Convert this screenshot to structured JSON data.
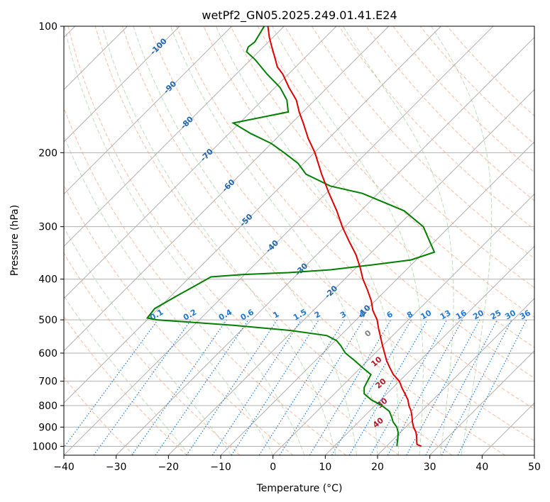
{
  "chart_data": {
    "type": "skew-t",
    "title": "wetPf2_GN05.2025.249.01.41.E24",
    "xlabel": "Temperature (°C)",
    "ylabel": "Pressure (hPa)",
    "xlim": [
      -40,
      50
    ],
    "ylim_hpa": [
      1050,
      100
    ],
    "x_ticks": [
      -40,
      -30,
      -20,
      -10,
      0,
      10,
      20,
      30,
      40,
      50
    ],
    "y_ticks": [
      100,
      200,
      300,
      400,
      500,
      600,
      700,
      800,
      900,
      1000
    ],
    "temperature_profile": [
      {
        "p": 1000,
        "t": 26.7
      },
      {
        "p": 990,
        "t": 25.5
      },
      {
        "p": 975,
        "t": 24.9
      },
      {
        "p": 950,
        "t": 24.0
      },
      {
        "p": 925,
        "t": 22.9
      },
      {
        "p": 900,
        "t": 21.5
      },
      {
        "p": 875,
        "t": 20.3
      },
      {
        "p": 850,
        "t": 19.2
      },
      {
        "p": 825,
        "t": 18.0
      },
      {
        "p": 800,
        "t": 16.5
      },
      {
        "p": 775,
        "t": 15.2
      },
      {
        "p": 750,
        "t": 13.5
      },
      {
        "p": 725,
        "t": 11.7
      },
      {
        "p": 700,
        "t": 10.0
      },
      {
        "p": 675,
        "t": 7.6
      },
      {
        "p": 650,
        "t": 5.6
      },
      {
        "p": 625,
        "t": 3.6
      },
      {
        "p": 600,
        "t": 1.8
      },
      {
        "p": 575,
        "t": -0.1
      },
      {
        "p": 550,
        "t": -2.0
      },
      {
        "p": 525,
        "t": -4.0
      },
      {
        "p": 500,
        "t": -6.0
      },
      {
        "p": 475,
        "t": -8.6
      },
      {
        "p": 450,
        "t": -10.8
      },
      {
        "p": 425,
        "t": -13.5
      },
      {
        "p": 400,
        "t": -16.5
      },
      {
        "p": 375,
        "t": -19.3
      },
      {
        "p": 350,
        "t": -22.5
      },
      {
        "p": 325,
        "t": -26.4
      },
      {
        "p": 300,
        "t": -30.5
      },
      {
        "p": 275,
        "t": -34.6
      },
      {
        "p": 250,
        "t": -39.4
      },
      {
        "p": 225,
        "t": -44.5
      },
      {
        "p": 200,
        "t": -49.9
      },
      {
        "p": 185,
        "t": -53.9
      },
      {
        "p": 170,
        "t": -57.8
      },
      {
        "p": 160,
        "t": -60.7
      },
      {
        "p": 150,
        "t": -63.5
      },
      {
        "p": 140,
        "t": -67.3
      },
      {
        "p": 130,
        "t": -71.1
      },
      {
        "p": 125,
        "t": -73.5
      },
      {
        "p": 120,
        "t": -75.3
      },
      {
        "p": 112,
        "t": -78.4
      },
      {
        "p": 106,
        "t": -80.8
      },
      {
        "p": 100,
        "t": -83.1
      }
    ],
    "dewpoint_profile": [
      {
        "p": 1000,
        "t": 22.0
      },
      {
        "p": 975,
        "t": 21.2
      },
      {
        "p": 950,
        "t": 20.4
      },
      {
        "p": 925,
        "t": 19.5
      },
      {
        "p": 900,
        "t": 18.3
      },
      {
        "p": 875,
        "t": 16.6
      },
      {
        "p": 850,
        "t": 15.3
      },
      {
        "p": 825,
        "t": 13.8
      },
      {
        "p": 800,
        "t": 11.3
      },
      {
        "p": 775,
        "t": 8.2
      },
      {
        "p": 750,
        "t": 5.7
      },
      {
        "p": 725,
        "t": 4.5
      },
      {
        "p": 700,
        "t": 3.9
      },
      {
        "p": 675,
        "t": 3.3
      },
      {
        "p": 650,
        "t": 0.4
      },
      {
        "p": 625,
        "t": -2.5
      },
      {
        "p": 600,
        "t": -5.7
      },
      {
        "p": 575,
        "t": -8.1
      },
      {
        "p": 560,
        "t": -9.8
      },
      {
        "p": 545,
        "t": -12.6
      },
      {
        "p": 530,
        "t": -20.5
      },
      {
        "p": 515,
        "t": -32.5
      },
      {
        "p": 500,
        "t": -48.1
      },
      {
        "p": 495,
        "t": -50.3
      },
      {
        "p": 470,
        "t": -50.7
      },
      {
        "p": 440,
        "t": -49.0
      },
      {
        "p": 410,
        "t": -47.0
      },
      {
        "p": 395,
        "t": -46.0
      },
      {
        "p": 390,
        "t": -40.5
      },
      {
        "p": 386,
        "t": -32.0
      },
      {
        "p": 380,
        "t": -24.5
      },
      {
        "p": 370,
        "t": -17.5
      },
      {
        "p": 360,
        "t": -11.0
      },
      {
        "p": 345,
        "t": -8.0
      },
      {
        "p": 325,
        "t": -11.0
      },
      {
        "p": 300,
        "t": -15.0
      },
      {
        "p": 275,
        "t": -21.7
      },
      {
        "p": 250,
        "t": -33.0
      },
      {
        "p": 240,
        "t": -40.6
      },
      {
        "p": 225,
        "t": -47.5
      },
      {
        "p": 212,
        "t": -51.1
      },
      {
        "p": 200,
        "t": -55.8
      },
      {
        "p": 190,
        "t": -60.1
      },
      {
        "p": 180,
        "t": -65.9
      },
      {
        "p": 170,
        "t": -71.2
      },
      {
        "p": 160,
        "t": -62.8
      },
      {
        "p": 150,
        "t": -65.3
      },
      {
        "p": 140,
        "t": -69.0
      },
      {
        "p": 130,
        "t": -74.1
      },
      {
        "p": 120,
        "t": -79.2
      },
      {
        "p": 115,
        "t": -82.3
      },
      {
        "p": 112,
        "t": -82.9
      },
      {
        "p": 109,
        "t": -82.6
      },
      {
        "p": 100,
        "t": -83.8
      }
    ],
    "dry_adiabat_labels": [
      "-100",
      "-90",
      "-80",
      "-70",
      "-60",
      "-50",
      "-40",
      "-30",
      "-20",
      "-10"
    ],
    "moist_adiabat_labels": [
      "0",
      "10",
      "20",
      "30",
      "40"
    ],
    "mixing_ratio_labels": [
      "0.1",
      "0.2",
      "0.4",
      "0.6",
      "1",
      "1.5",
      "2",
      "3",
      "4",
      "6",
      "8",
      "10",
      "13",
      "16",
      "20",
      "25",
      "30",
      "36"
    ],
    "colors": {
      "temperature": "#e00000",
      "dewpoint": "#008000",
      "dry_adiabat_line": "#f4a582",
      "dry_adiabat_label": "#2166ac",
      "moist_adiabat_line": "#92c78f",
      "moist_adiabat_label": "#b2182b",
      "zero_label": "#808080",
      "mixing_ratio": "#1f78d1",
      "isotherm": "#b0b0b0",
      "grid": "#b0b0b0"
    }
  }
}
